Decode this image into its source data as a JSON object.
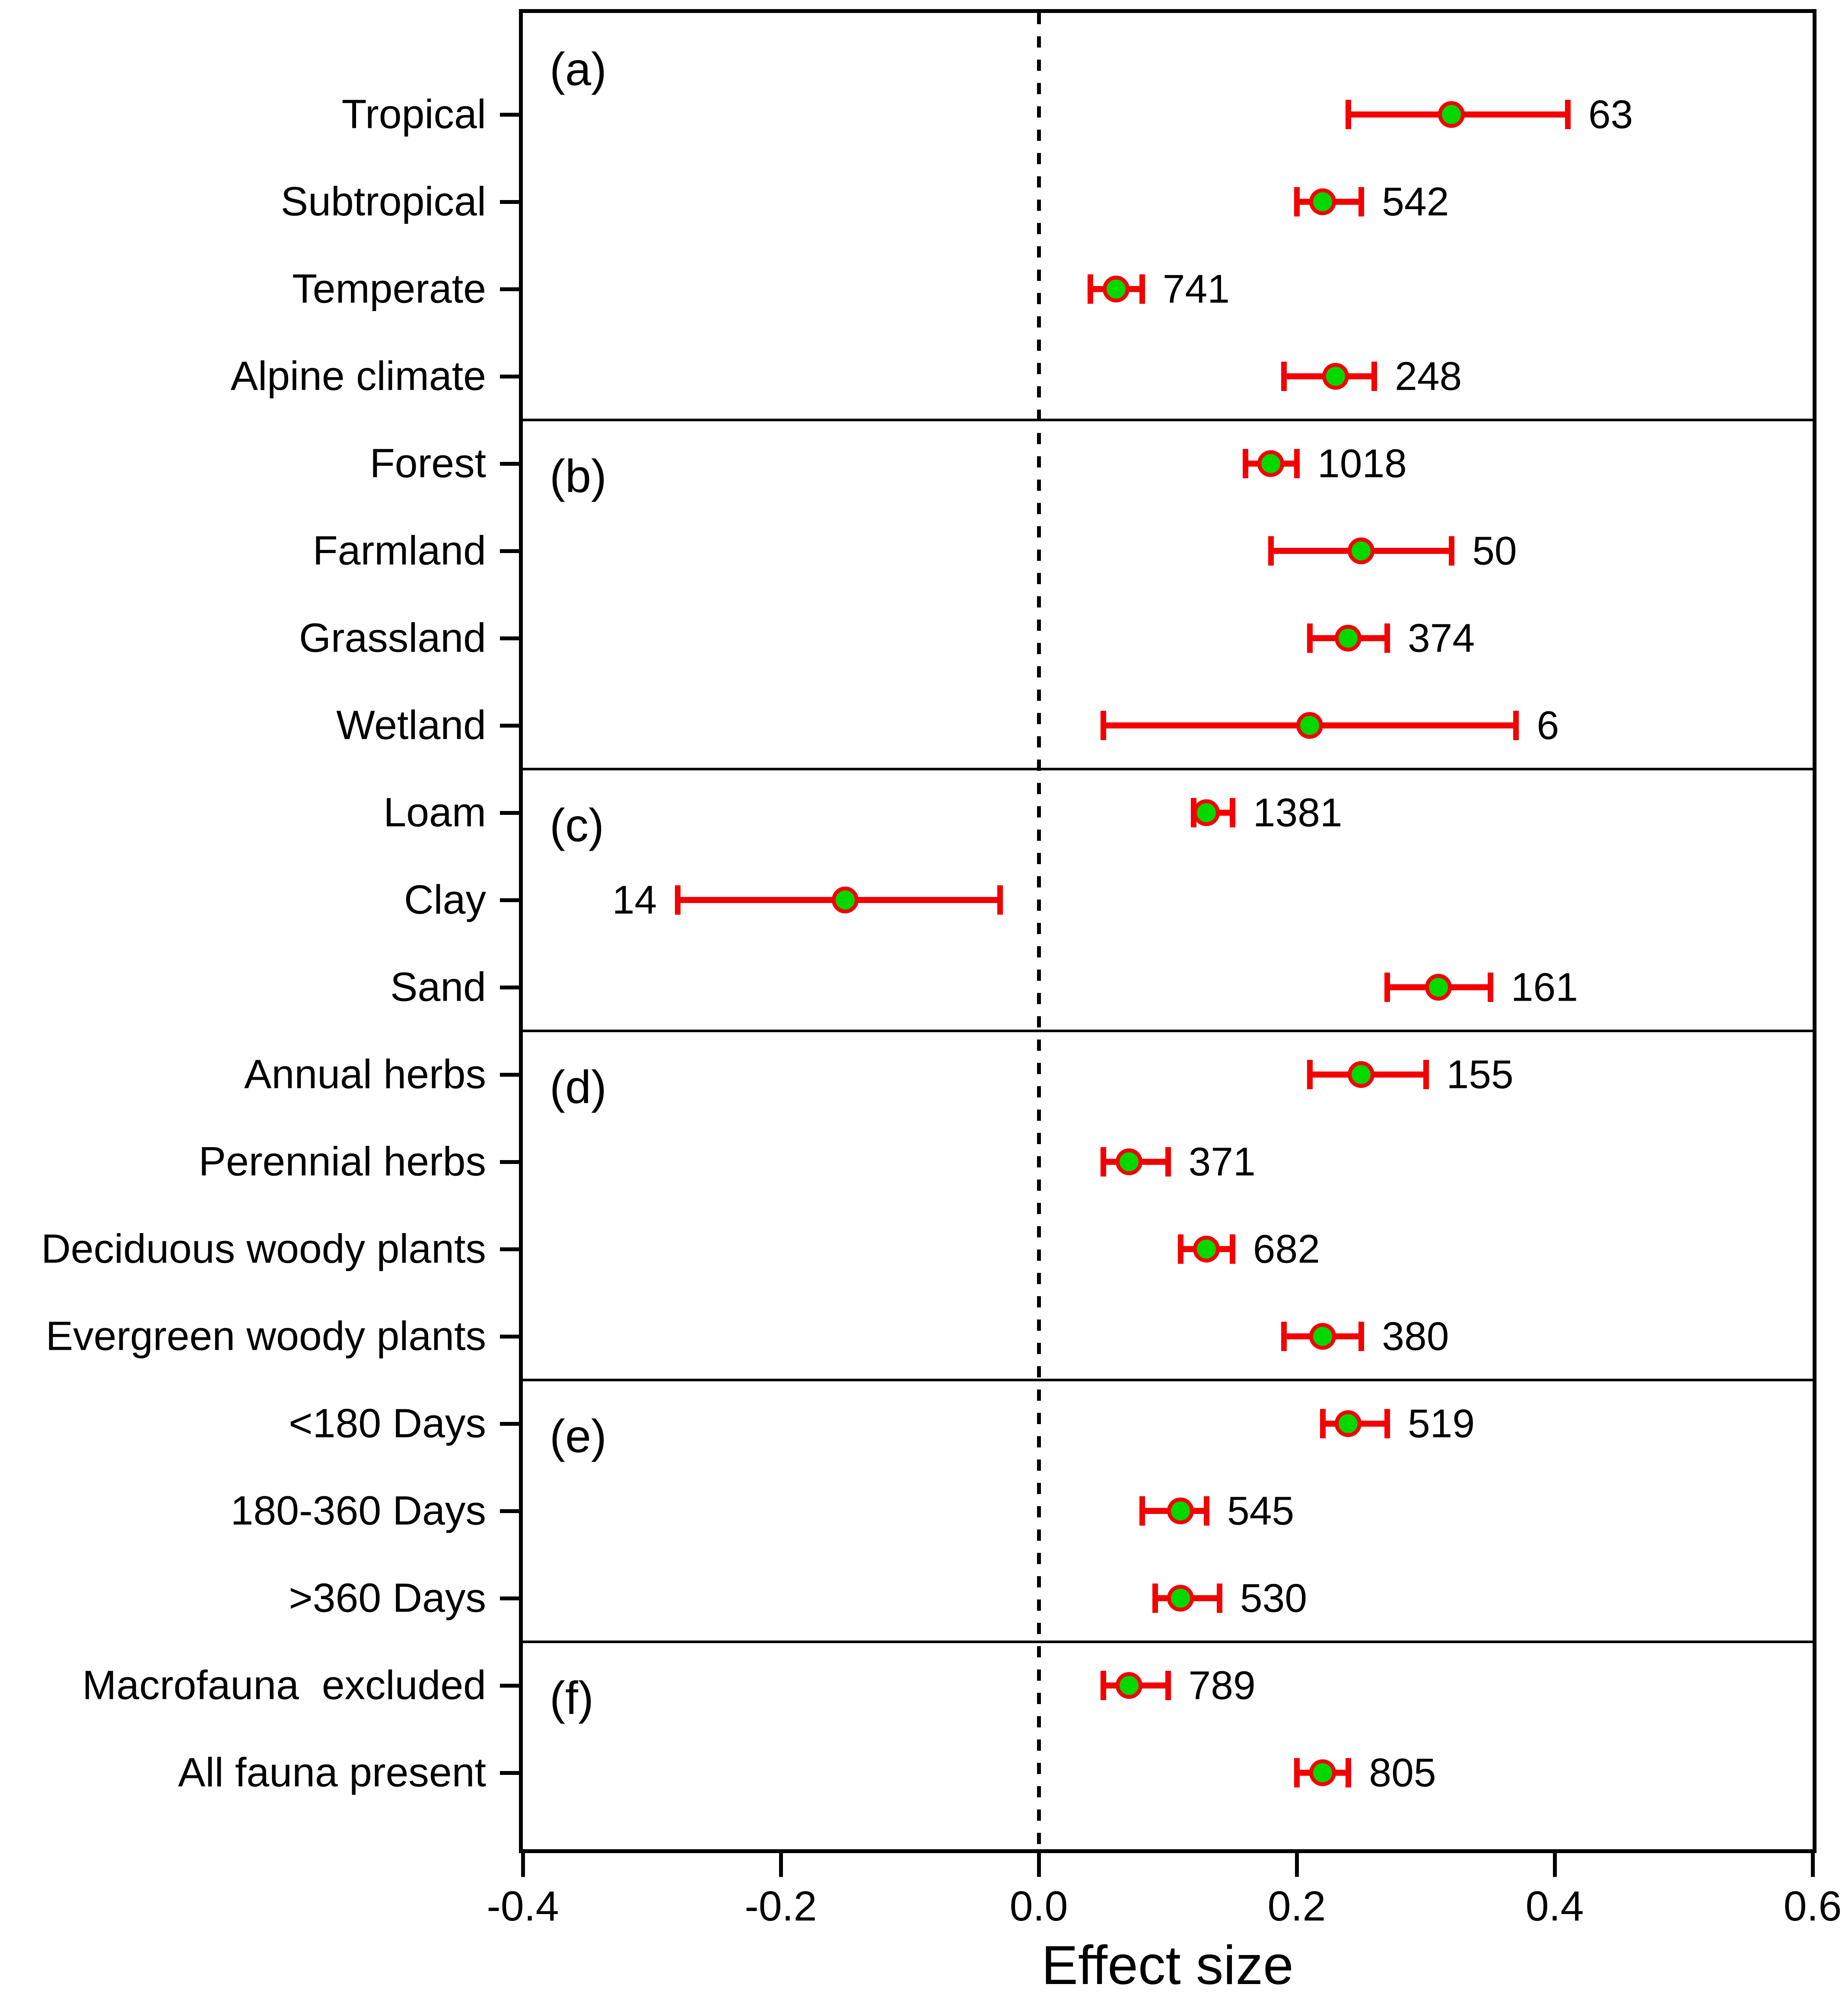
{
  "chart_data": {
    "type": "scatter",
    "variant": "forest-plot-with-error-bars",
    "title": "",
    "xlabel": "Effect size",
    "ylabel": "",
    "xlim": [
      -0.4,
      0.6
    ],
    "x_ticks": [
      -0.4,
      -0.2,
      0.0,
      0.2,
      0.4,
      0.6
    ],
    "x_tick_labels": [
      "-0.4",
      "-0.2",
      "0.0",
      "0.2",
      "0.4",
      "0.6"
    ],
    "zero_reference_line": 0.0,
    "grid": false,
    "legend": "none",
    "marker_fill_color": "#00d900",
    "marker_stroke_color": "#f40000",
    "error_bar_color": "#f40000",
    "panels": [
      {
        "letter": "(a)",
        "rows": [
          {
            "label": "Tropical",
            "effect": 0.32,
            "ci_low": 0.24,
            "ci_high": 0.41,
            "n": "63",
            "n_label_side": "right"
          },
          {
            "label": "Subtropical",
            "effect": 0.22,
            "ci_low": 0.2,
            "ci_high": 0.25,
            "n": "542",
            "n_label_side": "right"
          },
          {
            "label": "Temperate",
            "effect": 0.06,
            "ci_low": 0.04,
            "ci_high": 0.08,
            "n": "741",
            "n_label_side": "right"
          },
          {
            "label": "Alpine climate",
            "effect": 0.23,
            "ci_low": 0.19,
            "ci_high": 0.26,
            "n": "248",
            "n_label_side": "right"
          }
        ]
      },
      {
        "letter": "(b)",
        "rows": [
          {
            "label": "Forest",
            "effect": 0.18,
            "ci_low": 0.16,
            "ci_high": 0.2,
            "n": "1018",
            "n_label_side": "right"
          },
          {
            "label": "Farmland",
            "effect": 0.25,
            "ci_low": 0.18,
            "ci_high": 0.32,
            "n": "50",
            "n_label_side": "right"
          },
          {
            "label": "Grassland",
            "effect": 0.24,
            "ci_low": 0.21,
            "ci_high": 0.27,
            "n": "374",
            "n_label_side": "right"
          },
          {
            "label": "Wetland",
            "effect": 0.21,
            "ci_low": 0.05,
            "ci_high": 0.37,
            "n": "6",
            "n_label_side": "right"
          }
        ]
      },
      {
        "letter": "(c)",
        "rows": [
          {
            "label": "Loam",
            "effect": 0.13,
            "ci_low": 0.12,
            "ci_high": 0.15,
            "n": "1381",
            "n_label_side": "right"
          },
          {
            "label": "Clay",
            "effect": -0.15,
            "ci_low": -0.28,
            "ci_high": -0.03,
            "n": "14",
            "n_label_side": "left"
          },
          {
            "label": "Sand",
            "effect": 0.31,
            "ci_low": 0.27,
            "ci_high": 0.35,
            "n": "161",
            "n_label_side": "right"
          }
        ]
      },
      {
        "letter": "(d)",
        "rows": [
          {
            "label": "Annual herbs",
            "effect": 0.25,
            "ci_low": 0.21,
            "ci_high": 0.3,
            "n": "155",
            "n_label_side": "right"
          },
          {
            "label": "Perennial herbs",
            "effect": 0.07,
            "ci_low": 0.05,
            "ci_high": 0.1,
            "n": "371",
            "n_label_side": "right"
          },
          {
            "label": "Deciduous woody plants",
            "effect": 0.13,
            "ci_low": 0.11,
            "ci_high": 0.15,
            "n": "682",
            "n_label_side": "right"
          },
          {
            "label": "Evergreen woody plants",
            "effect": 0.22,
            "ci_low": 0.19,
            "ci_high": 0.25,
            "n": "380",
            "n_label_side": "right"
          }
        ]
      },
      {
        "letter": "(e)",
        "rows": [
          {
            "label": "<180 Days",
            "effect": 0.24,
            "ci_low": 0.22,
            "ci_high": 0.27,
            "n": "519",
            "n_label_side": "right"
          },
          {
            "label": "180-360 Days",
            "effect": 0.11,
            "ci_low": 0.08,
            "ci_high": 0.13,
            "n": "545",
            "n_label_side": "right"
          },
          {
            "label": ">360 Days",
            "effect": 0.11,
            "ci_low": 0.09,
            "ci_high": 0.14,
            "n": "530",
            "n_label_side": "right"
          }
        ]
      },
      {
        "letter": "(f)",
        "rows": [
          {
            "label": "Macrofauna  excluded",
            "effect": 0.07,
            "ci_low": 0.05,
            "ci_high": 0.1,
            "n": "789",
            "n_label_side": "right"
          },
          {
            "label": "All fauna present",
            "effect": 0.22,
            "ci_low": 0.2,
            "ci_high": 0.24,
            "n": "805",
            "n_label_side": "right"
          }
        ]
      }
    ]
  }
}
